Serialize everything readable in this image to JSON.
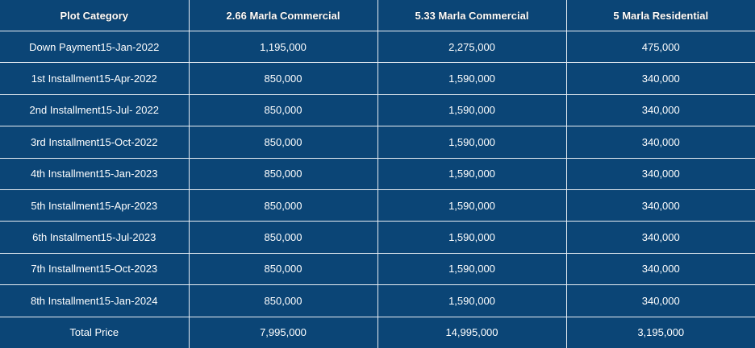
{
  "headers": [
    "Plot Category",
    "2.66 Marla Commercial",
    "5.33 Marla Commercial",
    "5 Marla Residential"
  ],
  "rows": [
    [
      "Down Payment15-Jan-2022",
      "1,195,000",
      "2,275,000",
      "475,000"
    ],
    [
      "1st Installment15-Apr-2022",
      "850,000",
      "1,590,000",
      "340,000"
    ],
    [
      "2nd Installment15-Jul- 2022",
      "850,000",
      "1,590,000",
      "340,000"
    ],
    [
      "3rd Installment15-Oct-2022",
      "850,000",
      "1,590,000",
      "340,000"
    ],
    [
      "4th Installment15-Jan-2023",
      "850,000",
      "1,590,000",
      "340,000"
    ],
    [
      "5th Installment15-Apr-2023",
      "850,000",
      "1,590,000",
      "340,000"
    ],
    [
      "6th Installment15-Jul-2023",
      "850,000",
      "1,590,000",
      "340,000"
    ],
    [
      "7th Installment15-Oct-2023",
      "850,000",
      "1,590,000",
      "340,000"
    ],
    [
      "8th Installment15-Jan-2024",
      "850,000",
      "1,590,000",
      "340,000"
    ],
    [
      "Total Price",
      "7,995,000",
      "14,995,000",
      "3,195,000"
    ]
  ]
}
